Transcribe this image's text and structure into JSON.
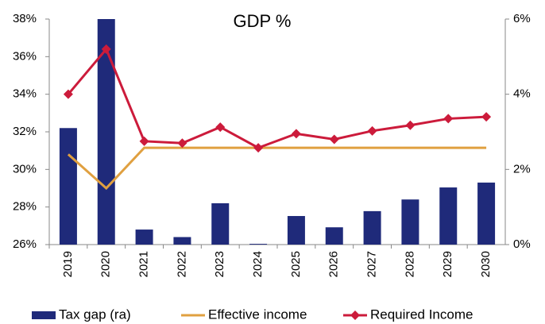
{
  "chart_data": {
    "type": "bar-line",
    "title": "GDP %",
    "categories": [
      "2019",
      "2020",
      "2021",
      "2022",
      "2023",
      "2024",
      "2025",
      "2026",
      "2027",
      "2028",
      "2029",
      "2030"
    ],
    "series": [
      {
        "name": "Tax gap (ra)",
        "type": "bar",
        "axis": "y2",
        "color": "#1f2a7a",
        "values": [
          3.1,
          6.0,
          0.4,
          0.2,
          1.1,
          0.02,
          0.76,
          0.46,
          0.89,
          1.2,
          1.52,
          1.65
        ]
      },
      {
        "name": "Effective income",
        "type": "line",
        "color": "#e0a040",
        "values": [
          30.8,
          29.0,
          31.15,
          31.15,
          31.15,
          31.15,
          31.15,
          31.15,
          31.15,
          31.15,
          31.15,
          31.15
        ]
      },
      {
        "name": "Required Income",
        "type": "line",
        "color": "#cc1b3b",
        "marker": "diamond",
        "values": [
          34.0,
          36.4,
          31.5,
          31.4,
          32.25,
          31.15,
          31.9,
          31.6,
          32.05,
          32.35,
          32.7,
          32.8
        ]
      }
    ],
    "ylim": [
      26,
      38
    ],
    "yticks": [
      {
        "value": 26,
        "label": "26%"
      },
      {
        "value": 28,
        "label": "28%"
      },
      {
        "value": 30,
        "label": "30%"
      },
      {
        "value": 32,
        "label": "32%"
      },
      {
        "value": 34,
        "label": "34%"
      },
      {
        "value": 36,
        "label": "36%"
      },
      {
        "value": 38,
        "label": "38%"
      }
    ],
    "y2lim": [
      0,
      6
    ],
    "y2ticks": [
      {
        "value": 0,
        "label": "0%"
      },
      {
        "value": 2,
        "label": "2%"
      },
      {
        "value": 4,
        "label": "4%"
      },
      {
        "value": 6,
        "label": "6%"
      }
    ]
  }
}
